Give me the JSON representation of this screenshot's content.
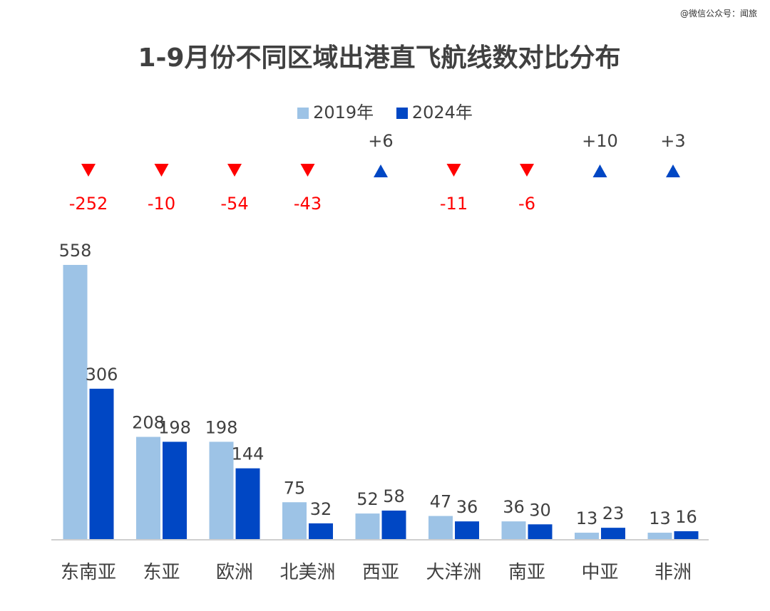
{
  "watermark": "@微信公众号：闻旅",
  "colors": {
    "y2019": "#9DC3E6",
    "y2024": "#0047C4",
    "down": "#FF0000",
    "up": "#0047C4",
    "axis": "#BFBFBF",
    "text": "#404040"
  },
  "chart_data": {
    "type": "bar",
    "title": "1-9月份不同区域出港直飞航线数对比分布",
    "categories": [
      "东南亚",
      "东亚",
      "欧洲",
      "北美洲",
      "西亚",
      "大洋洲",
      "南亚",
      "中亚",
      "非洲"
    ],
    "series": [
      {
        "name": "2019年",
        "values": [
          558,
          208,
          198,
          75,
          52,
          47,
          36,
          13,
          13
        ]
      },
      {
        "name": "2024年",
        "values": [
          306,
          198,
          144,
          32,
          58,
          36,
          30,
          23,
          16
        ]
      }
    ],
    "changes": [
      {
        "label": "-252",
        "direction": "down"
      },
      {
        "label": "-10",
        "direction": "down"
      },
      {
        "label": "-54",
        "direction": "down"
      },
      {
        "label": "-43",
        "direction": "down"
      },
      {
        "label": "+6",
        "direction": "up"
      },
      {
        "label": "-11",
        "direction": "down"
      },
      {
        "label": "-6",
        "direction": "down"
      },
      {
        "label": "+10",
        "direction": "up"
      },
      {
        "label": "+3",
        "direction": "up"
      }
    ],
    "ylim": [
      0,
      558
    ],
    "grid": false,
    "legend_position": "top"
  }
}
